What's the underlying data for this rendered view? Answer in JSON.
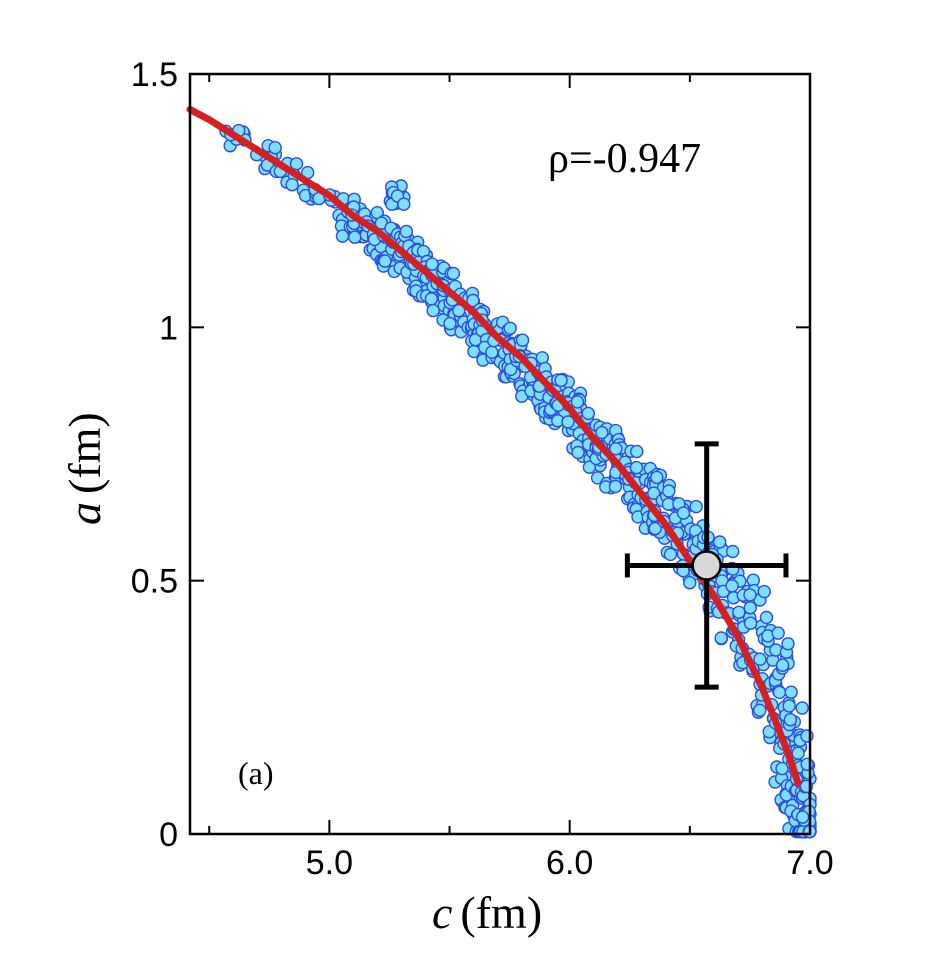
{
  "chart_data": {
    "type": "scatter",
    "xlabel_var": "c",
    "xlabel_unit": "(fm)",
    "ylabel_var": "a",
    "ylabel_unit": "(fm)",
    "xlim": [
      4.42,
      7.0
    ],
    "ylim": [
      0,
      1.5
    ],
    "x_ticks": [
      {
        "value": 5.0,
        "label": "5.0"
      },
      {
        "value": 6.0,
        "label": "6.0"
      },
      {
        "value": 7.0,
        "label": "7.0"
      }
    ],
    "x_minor_ticks": [
      4.5,
      5.5,
      6.5
    ],
    "y_ticks": [
      {
        "value": 0,
        "label": "0"
      },
      {
        "value": 0.5,
        "label": "0.5"
      },
      {
        "value": 1.0,
        "label": "1"
      },
      {
        "value": 1.5,
        "label": "1.5"
      }
    ],
    "annotation": "ρ=-0.947",
    "panel_label": "(a)",
    "scatter": {
      "name": "samples",
      "fill": "#7fdfff",
      "stroke": "#2a4fe0",
      "x": [
        4.6,
        4.63,
        4.72,
        4.75,
        4.8,
        4.85,
        4.9,
        4.95,
        5.0,
        5.05,
        5.08,
        5.12,
        5.17,
        5.2,
        5.25,
        5.28,
        5.3,
        5.34,
        5.38,
        5.42,
        5.45,
        5.5,
        5.53,
        5.58,
        5.62,
        5.66,
        5.7,
        5.74,
        5.78,
        5.82,
        5.86,
        5.9,
        5.94,
        5.98,
        6.02,
        6.06,
        6.1,
        6.14,
        6.18,
        6.22,
        6.26,
        6.3,
        6.34,
        6.38,
        6.42,
        6.46,
        6.5,
        6.54,
        6.58,
        6.62,
        6.66,
        6.7,
        6.74,
        6.78,
        6.82,
        6.85,
        6.88,
        6.9,
        6.92,
        6.94,
        6.96,
        6.97,
        6.98,
        6.985,
        6.99
      ],
      "y": [
        1.37,
        1.38,
        1.34,
        1.33,
        1.32,
        1.3,
        1.28,
        1.27,
        1.25,
        1.23,
        1.22,
        1.2,
        1.19,
        1.17,
        1.16,
        1.26,
        1.15,
        1.13,
        1.11,
        1.09,
        1.08,
        1.06,
        1.04,
        1.02,
        1.0,
        0.98,
        0.97,
        0.95,
        0.93,
        0.91,
        0.89,
        0.87,
        0.86,
        0.84,
        0.82,
        0.8,
        0.78,
        0.76,
        0.74,
        0.72,
        0.7,
        0.68,
        0.66,
        0.64,
        0.62,
        0.59,
        0.57,
        0.55,
        0.52,
        0.49,
        0.46,
        0.43,
        0.4,
        0.36,
        0.32,
        0.28,
        0.24,
        0.2,
        0.16,
        0.12,
        0.09,
        0.06,
        0.04,
        0.02,
        0.01
      ],
      "spread_y": [
        0.02,
        0.02,
        0.03,
        0.03,
        0.03,
        0.03,
        0.03,
        0.03,
        0.03,
        0.04,
        0.04,
        0.04,
        0.04,
        0.04,
        0.04,
        0.02,
        0.04,
        0.04,
        0.05,
        0.05,
        0.05,
        0.05,
        0.05,
        0.05,
        0.05,
        0.05,
        0.05,
        0.05,
        0.05,
        0.05,
        0.05,
        0.05,
        0.05,
        0.06,
        0.06,
        0.06,
        0.06,
        0.06,
        0.06,
        0.06,
        0.06,
        0.06,
        0.07,
        0.07,
        0.07,
        0.07,
        0.08,
        0.08,
        0.08,
        0.09,
        0.1,
        0.1,
        0.11,
        0.12,
        0.13,
        0.13,
        0.14,
        0.14,
        0.14,
        0.14,
        0.13,
        0.12,
        0.1,
        0.08,
        0.05
      ]
    },
    "fit_curve": {
      "name": "fit",
      "color": "#d62020",
      "x": [
        4.42,
        4.5,
        4.6,
        4.7,
        4.8,
        4.9,
        5.0,
        5.1,
        5.2,
        5.3,
        5.4,
        5.5,
        5.6,
        5.7,
        5.8,
        5.9,
        6.0,
        6.1,
        6.2,
        6.3,
        6.4,
        6.5,
        6.6,
        6.7,
        6.8,
        6.85,
        6.9,
        6.93,
        6.95
      ],
      "y": [
        1.43,
        1.41,
        1.38,
        1.35,
        1.32,
        1.29,
        1.26,
        1.22,
        1.19,
        1.15,
        1.11,
        1.07,
        1.03,
        0.98,
        0.94,
        0.89,
        0.84,
        0.78,
        0.73,
        0.67,
        0.61,
        0.54,
        0.47,
        0.39,
        0.29,
        0.23,
        0.17,
        0.13,
        0.1
      ]
    },
    "point": {
      "name": "reference",
      "x": 6.57,
      "y": 0.53,
      "x_err_low": 6.24,
      "x_err_high": 6.9,
      "y_err_low": 0.29,
      "y_err_high": 0.77,
      "fill": "#d8d8d8",
      "stroke": "#000000"
    }
  }
}
